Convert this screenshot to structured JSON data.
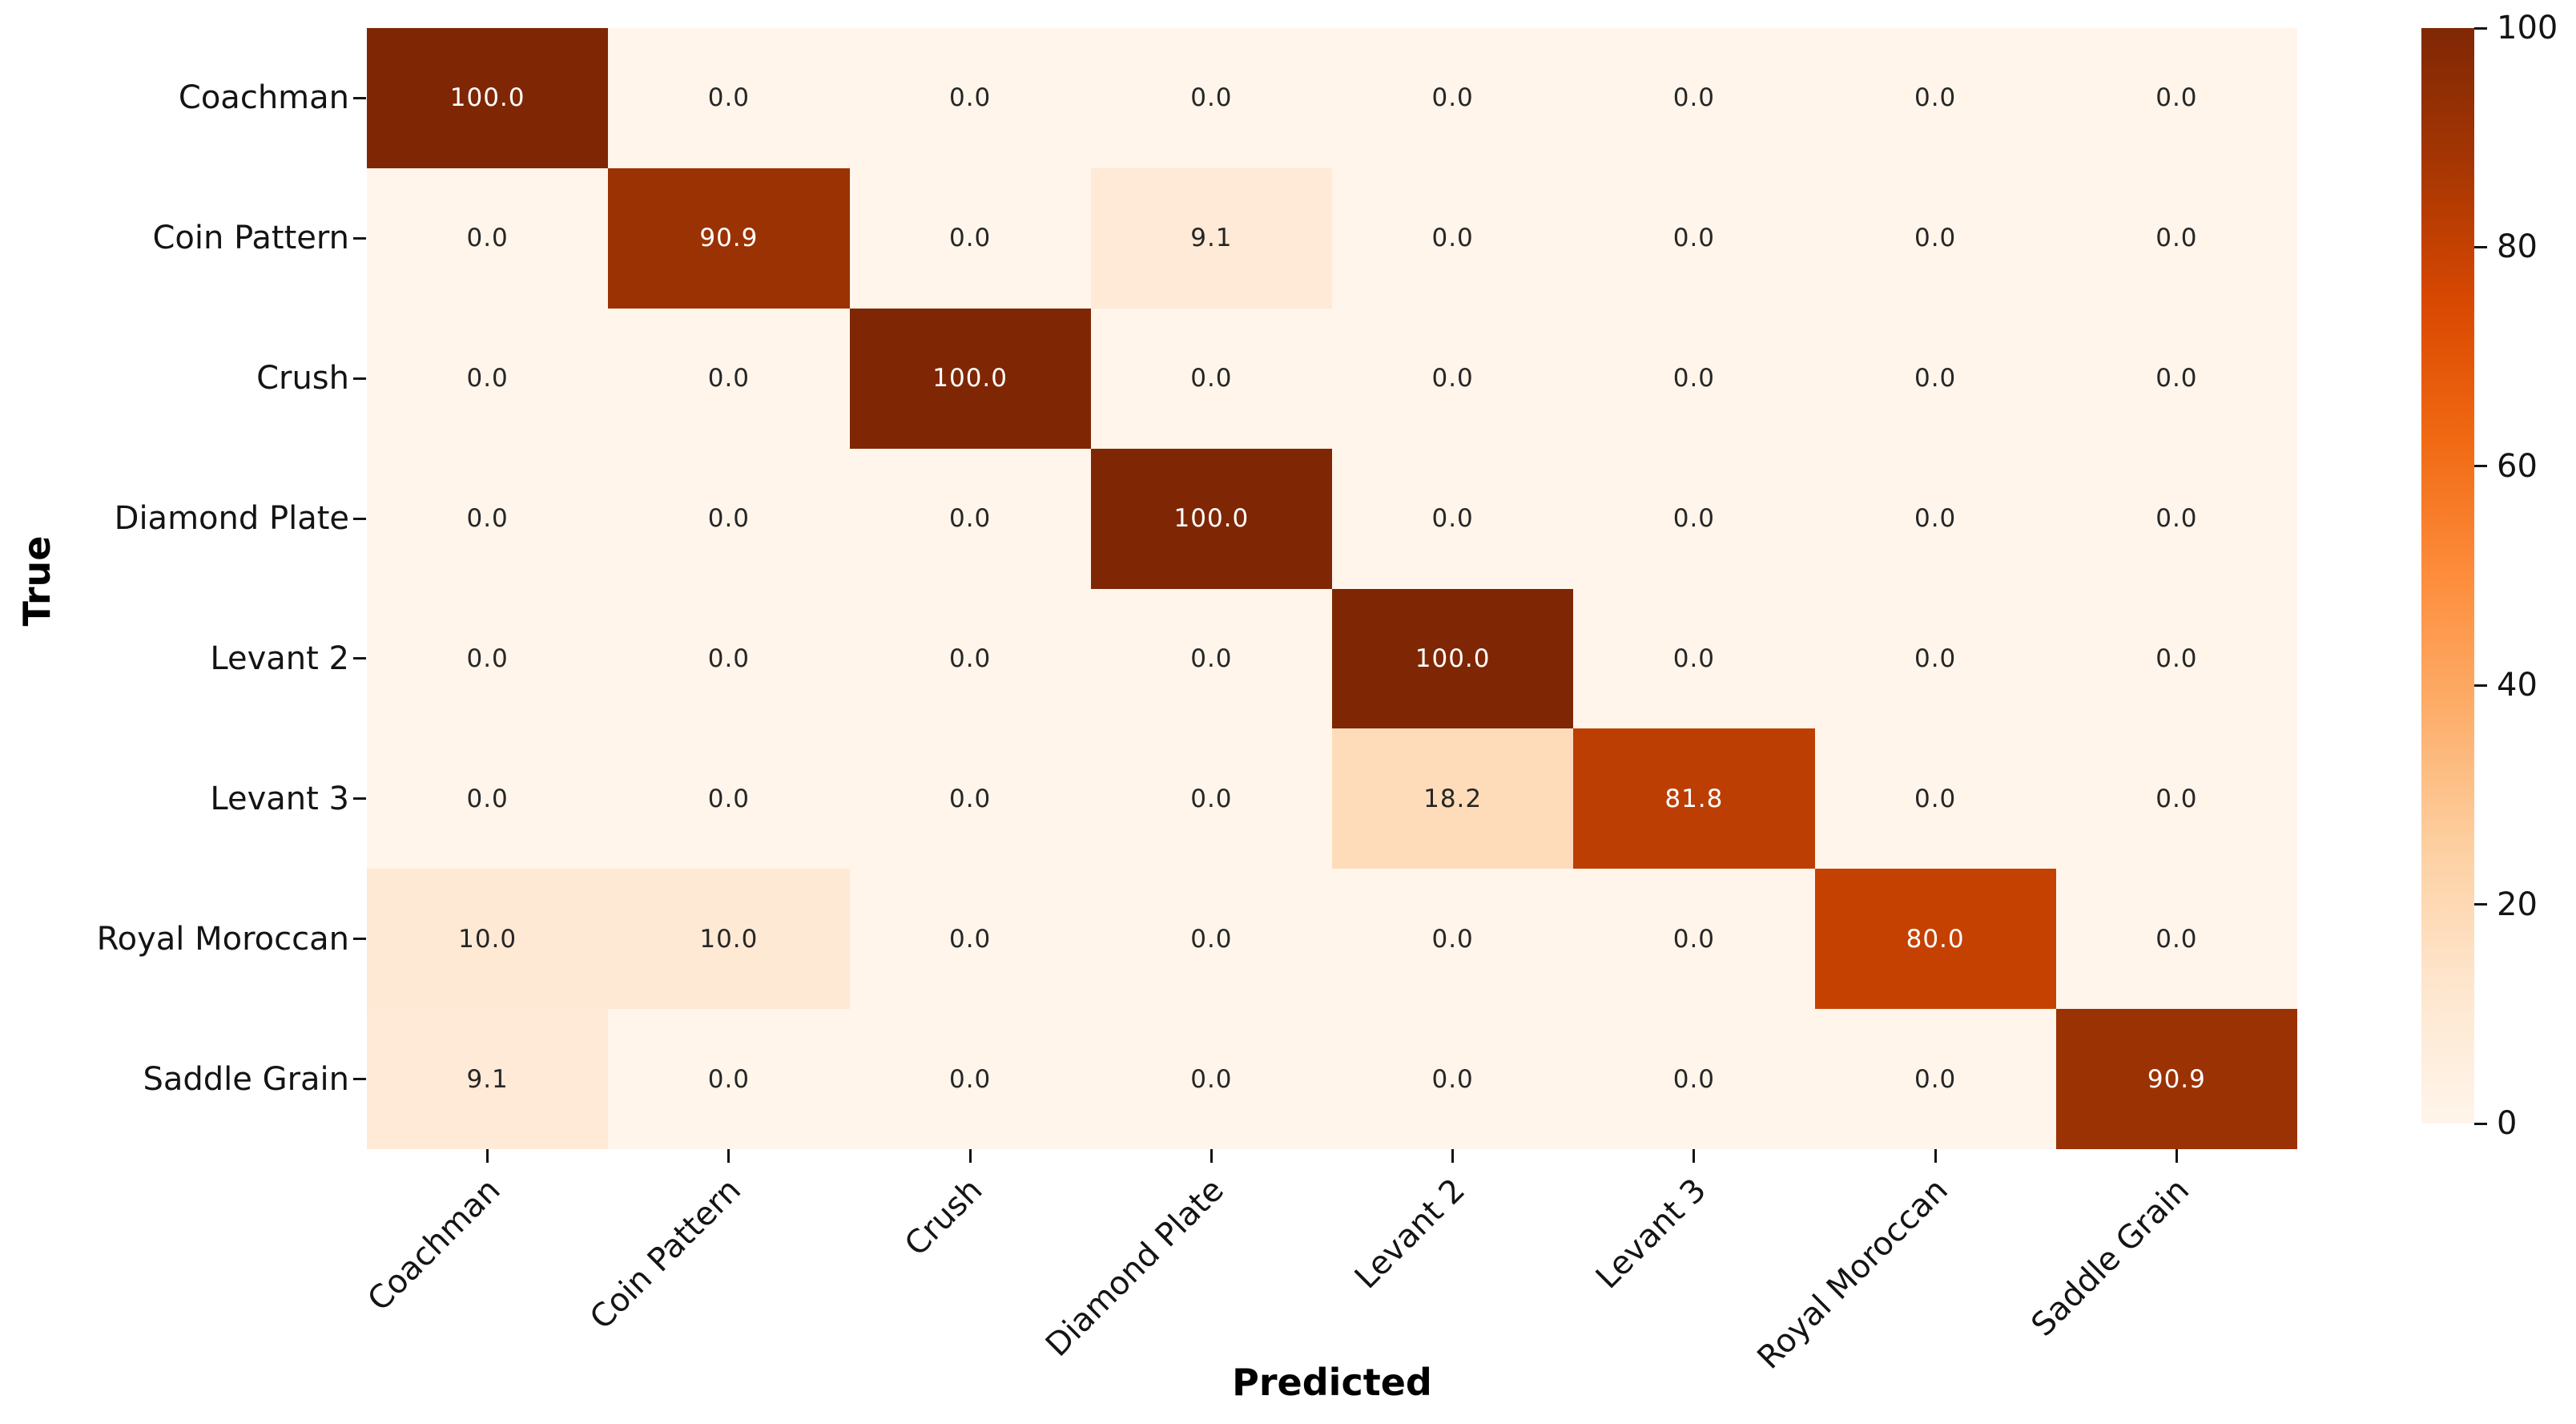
{
  "figure": {
    "background_color": "#ffffff",
    "tick_color": "#141414"
  },
  "chart_data": {
    "type": "heatmap",
    "title": "",
    "xlabel": "Predicted",
    "ylabel": "True",
    "x_categories": [
      "Coachman",
      "Coin Pattern",
      "Crush",
      "Diamond Plate",
      "Levant 2",
      "Levant 3",
      "Royal Moroccan",
      "Saddle Grain"
    ],
    "y_categories": [
      "Coachman",
      "Coin Pattern",
      "Crush",
      "Diamond Plate",
      "Levant 2",
      "Levant 3",
      "Royal Moroccan",
      "Saddle Grain"
    ],
    "values": [
      [
        100.0,
        0.0,
        0.0,
        0.0,
        0.0,
        0.0,
        0.0,
        0.0
      ],
      [
        0.0,
        90.9,
        0.0,
        9.1,
        0.0,
        0.0,
        0.0,
        0.0
      ],
      [
        0.0,
        0.0,
        100.0,
        0.0,
        0.0,
        0.0,
        0.0,
        0.0
      ],
      [
        0.0,
        0.0,
        0.0,
        100.0,
        0.0,
        0.0,
        0.0,
        0.0
      ],
      [
        0.0,
        0.0,
        0.0,
        0.0,
        100.0,
        0.0,
        0.0,
        0.0
      ],
      [
        0.0,
        0.0,
        0.0,
        0.0,
        18.2,
        81.8,
        0.0,
        0.0
      ],
      [
        10.0,
        10.0,
        0.0,
        0.0,
        0.0,
        0.0,
        80.0,
        0.0
      ],
      [
        9.1,
        0.0,
        0.0,
        0.0,
        0.0,
        0.0,
        0.0,
        90.9
      ]
    ],
    "value_decimals": 1,
    "vmin": 0,
    "vmax": 100,
    "grid": false,
    "colormap_name": "Oranges",
    "colormap_stops": [
      {
        "t": 0.0,
        "color": "#fff5eb"
      },
      {
        "t": 0.125,
        "color": "#fee6ce"
      },
      {
        "t": 0.25,
        "color": "#fdd0a2"
      },
      {
        "t": 0.375,
        "color": "#fdae6b"
      },
      {
        "t": 0.5,
        "color": "#fd8d3c"
      },
      {
        "t": 0.625,
        "color": "#f16913"
      },
      {
        "t": 0.75,
        "color": "#d94801"
      },
      {
        "t": 0.875,
        "color": "#a63603"
      },
      {
        "t": 1.0,
        "color": "#7f2704"
      }
    ],
    "annotation_color_dark_cells": "#ffffff",
    "annotation_color_light_cells": "#262626",
    "colorbar": {
      "position": "right",
      "ticks": [
        100,
        80,
        60,
        40,
        20,
        0
      ]
    }
  }
}
